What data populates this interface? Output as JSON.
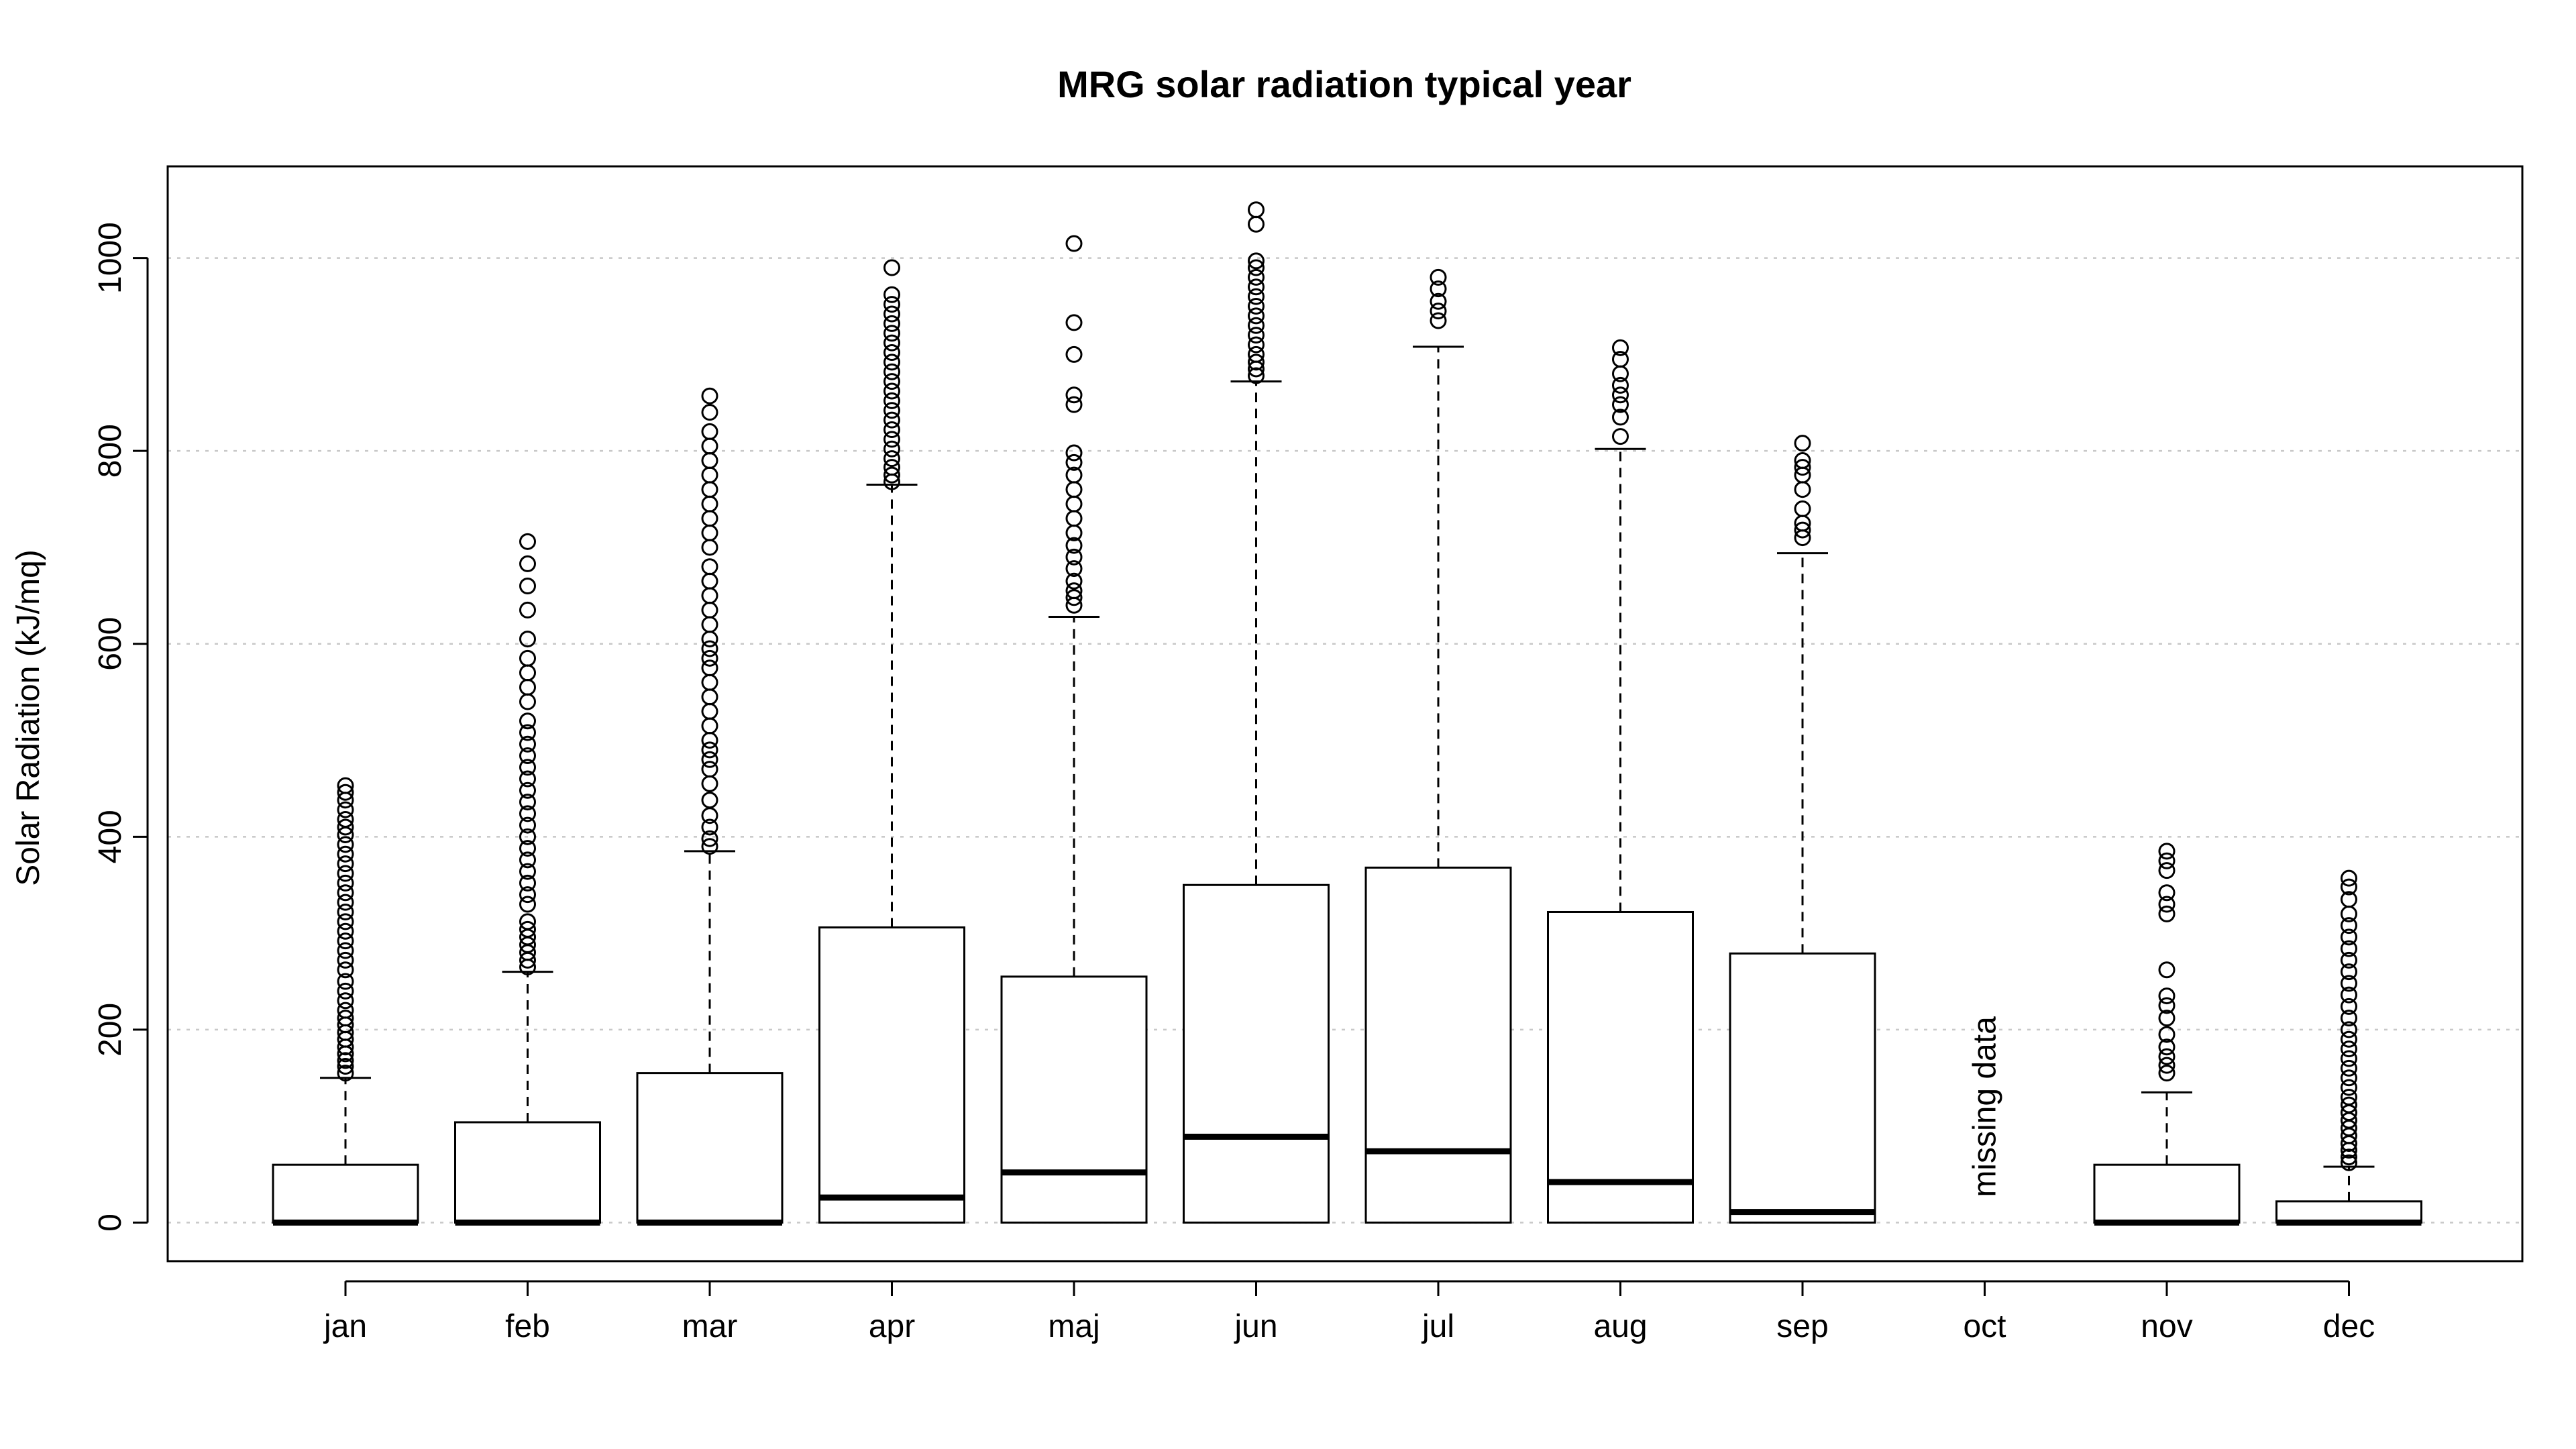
{
  "chart_data": {
    "type": "box",
    "title": "MRG solar radiation typical year",
    "ylabel": "Solar Radiation (kJ/mq)",
    "xlabel": "",
    "ylim": [
      -40,
      1095
    ],
    "yticks": [
      0,
      200,
      400,
      600,
      800,
      1000
    ],
    "grid": "horizontal dotted",
    "categories": [
      "jan",
      "feb",
      "mar",
      "apr",
      "maj",
      "jun",
      "jul",
      "aug",
      "sep",
      "oct",
      "nov",
      "dec"
    ],
    "boxes": [
      {
        "category": "jan",
        "lower": 0,
        "q1": 0,
        "median": 0,
        "q3": 60,
        "upper": 150,
        "outliers": [
          155,
          162,
          168,
          175,
          182,
          190,
          197,
          205,
          212,
          220,
          230,
          240,
          250,
          262,
          272,
          282,
          292,
          302,
          312,
          322,
          332,
          342,
          352,
          362,
          372,
          382,
          392,
          402,
          410,
          418,
          428,
          438,
          446,
          453
        ]
      },
      {
        "category": "feb",
        "lower": 0,
        "q1": 0,
        "median": 0,
        "q3": 104,
        "upper": 260,
        "outliers": [
          265,
          272,
          280,
          288,
          296,
          304,
          312,
          330,
          340,
          352,
          364,
          376,
          388,
          400,
          412,
          424,
          436,
          448,
          460,
          472,
          484,
          496,
          508,
          520,
          540,
          555,
          570,
          585,
          605,
          635,
          660,
          683,
          706
        ]
      },
      {
        "category": "mar",
        "lower": 0,
        "q1": 0,
        "median": 0,
        "q3": 155,
        "upper": 385,
        "outliers": [
          390,
          398,
          410,
          422,
          438,
          455,
          470,
          480,
          490,
          500,
          515,
          530,
          545,
          560,
          575,
          585,
          595,
          605,
          620,
          635,
          650,
          665,
          680,
          700,
          715,
          730,
          745,
          760,
          775,
          790,
          805,
          820,
          840,
          857
        ]
      },
      {
        "category": "apr",
        "lower": 0,
        "q1": 0,
        "median": 26,
        "q3": 306,
        "upper": 765,
        "outliers": [
          768,
          775,
          783,
          792,
          802,
          812,
          822,
          832,
          842,
          852,
          862,
          872,
          882,
          892,
          902,
          912,
          922,
          932,
          942,
          952,
          962,
          990
        ]
      },
      {
        "category": "maj",
        "lower": 0,
        "q1": 0,
        "median": 52,
        "q3": 255,
        "upper": 628,
        "outliers": [
          640,
          648,
          655,
          665,
          678,
          690,
          702,
          715,
          730,
          745,
          760,
          775,
          788,
          798,
          848,
          858,
          900,
          933,
          1015
        ]
      },
      {
        "category": "jun",
        "lower": 0,
        "q1": 0,
        "median": 89,
        "q3": 350,
        "upper": 872,
        "outliers": [
          878,
          885,
          892,
          900,
          910,
          920,
          930,
          940,
          950,
          960,
          970,
          980,
          990,
          997,
          1035,
          1050
        ]
      },
      {
        "category": "jul",
        "lower": 0,
        "q1": 0,
        "median": 74,
        "q3": 368,
        "upper": 908,
        "outliers": [
          935,
          945,
          955,
          968,
          980
        ]
      },
      {
        "category": "aug",
        "lower": 0,
        "q1": 0,
        "median": 42,
        "q3": 322,
        "upper": 802,
        "outliers": [
          815,
          835,
          848,
          858,
          868,
          880,
          895,
          907
        ]
      },
      {
        "category": "sep",
        "lower": 0,
        "q1": 0,
        "median": 11,
        "q3": 279,
        "upper": 694,
        "outliers": [
          710,
          718,
          725,
          740,
          760,
          775,
          783,
          790,
          808
        ]
      },
      {
        "category": "oct",
        "missing": true,
        "annotation": "missing data"
      },
      {
        "category": "nov",
        "lower": 0,
        "q1": 0,
        "median": 0,
        "q3": 60,
        "upper": 135,
        "outliers": [
          155,
          163,
          172,
          182,
          195,
          212,
          225,
          235,
          262,
          320,
          330,
          342,
          365,
          375,
          385
        ]
      },
      {
        "category": "dec",
        "lower": 0,
        "q1": 0,
        "median": 0,
        "q3": 22,
        "upper": 58,
        "outliers": [
          62,
          68,
          75,
          82,
          90,
          98,
          106,
          114,
          122,
          130,
          140,
          150,
          160,
          170,
          180,
          190,
          200,
          212,
          224,
          236,
          248,
          260,
          272,
          284,
          296,
          308,
          320,
          335,
          348,
          357
        ]
      }
    ]
  }
}
